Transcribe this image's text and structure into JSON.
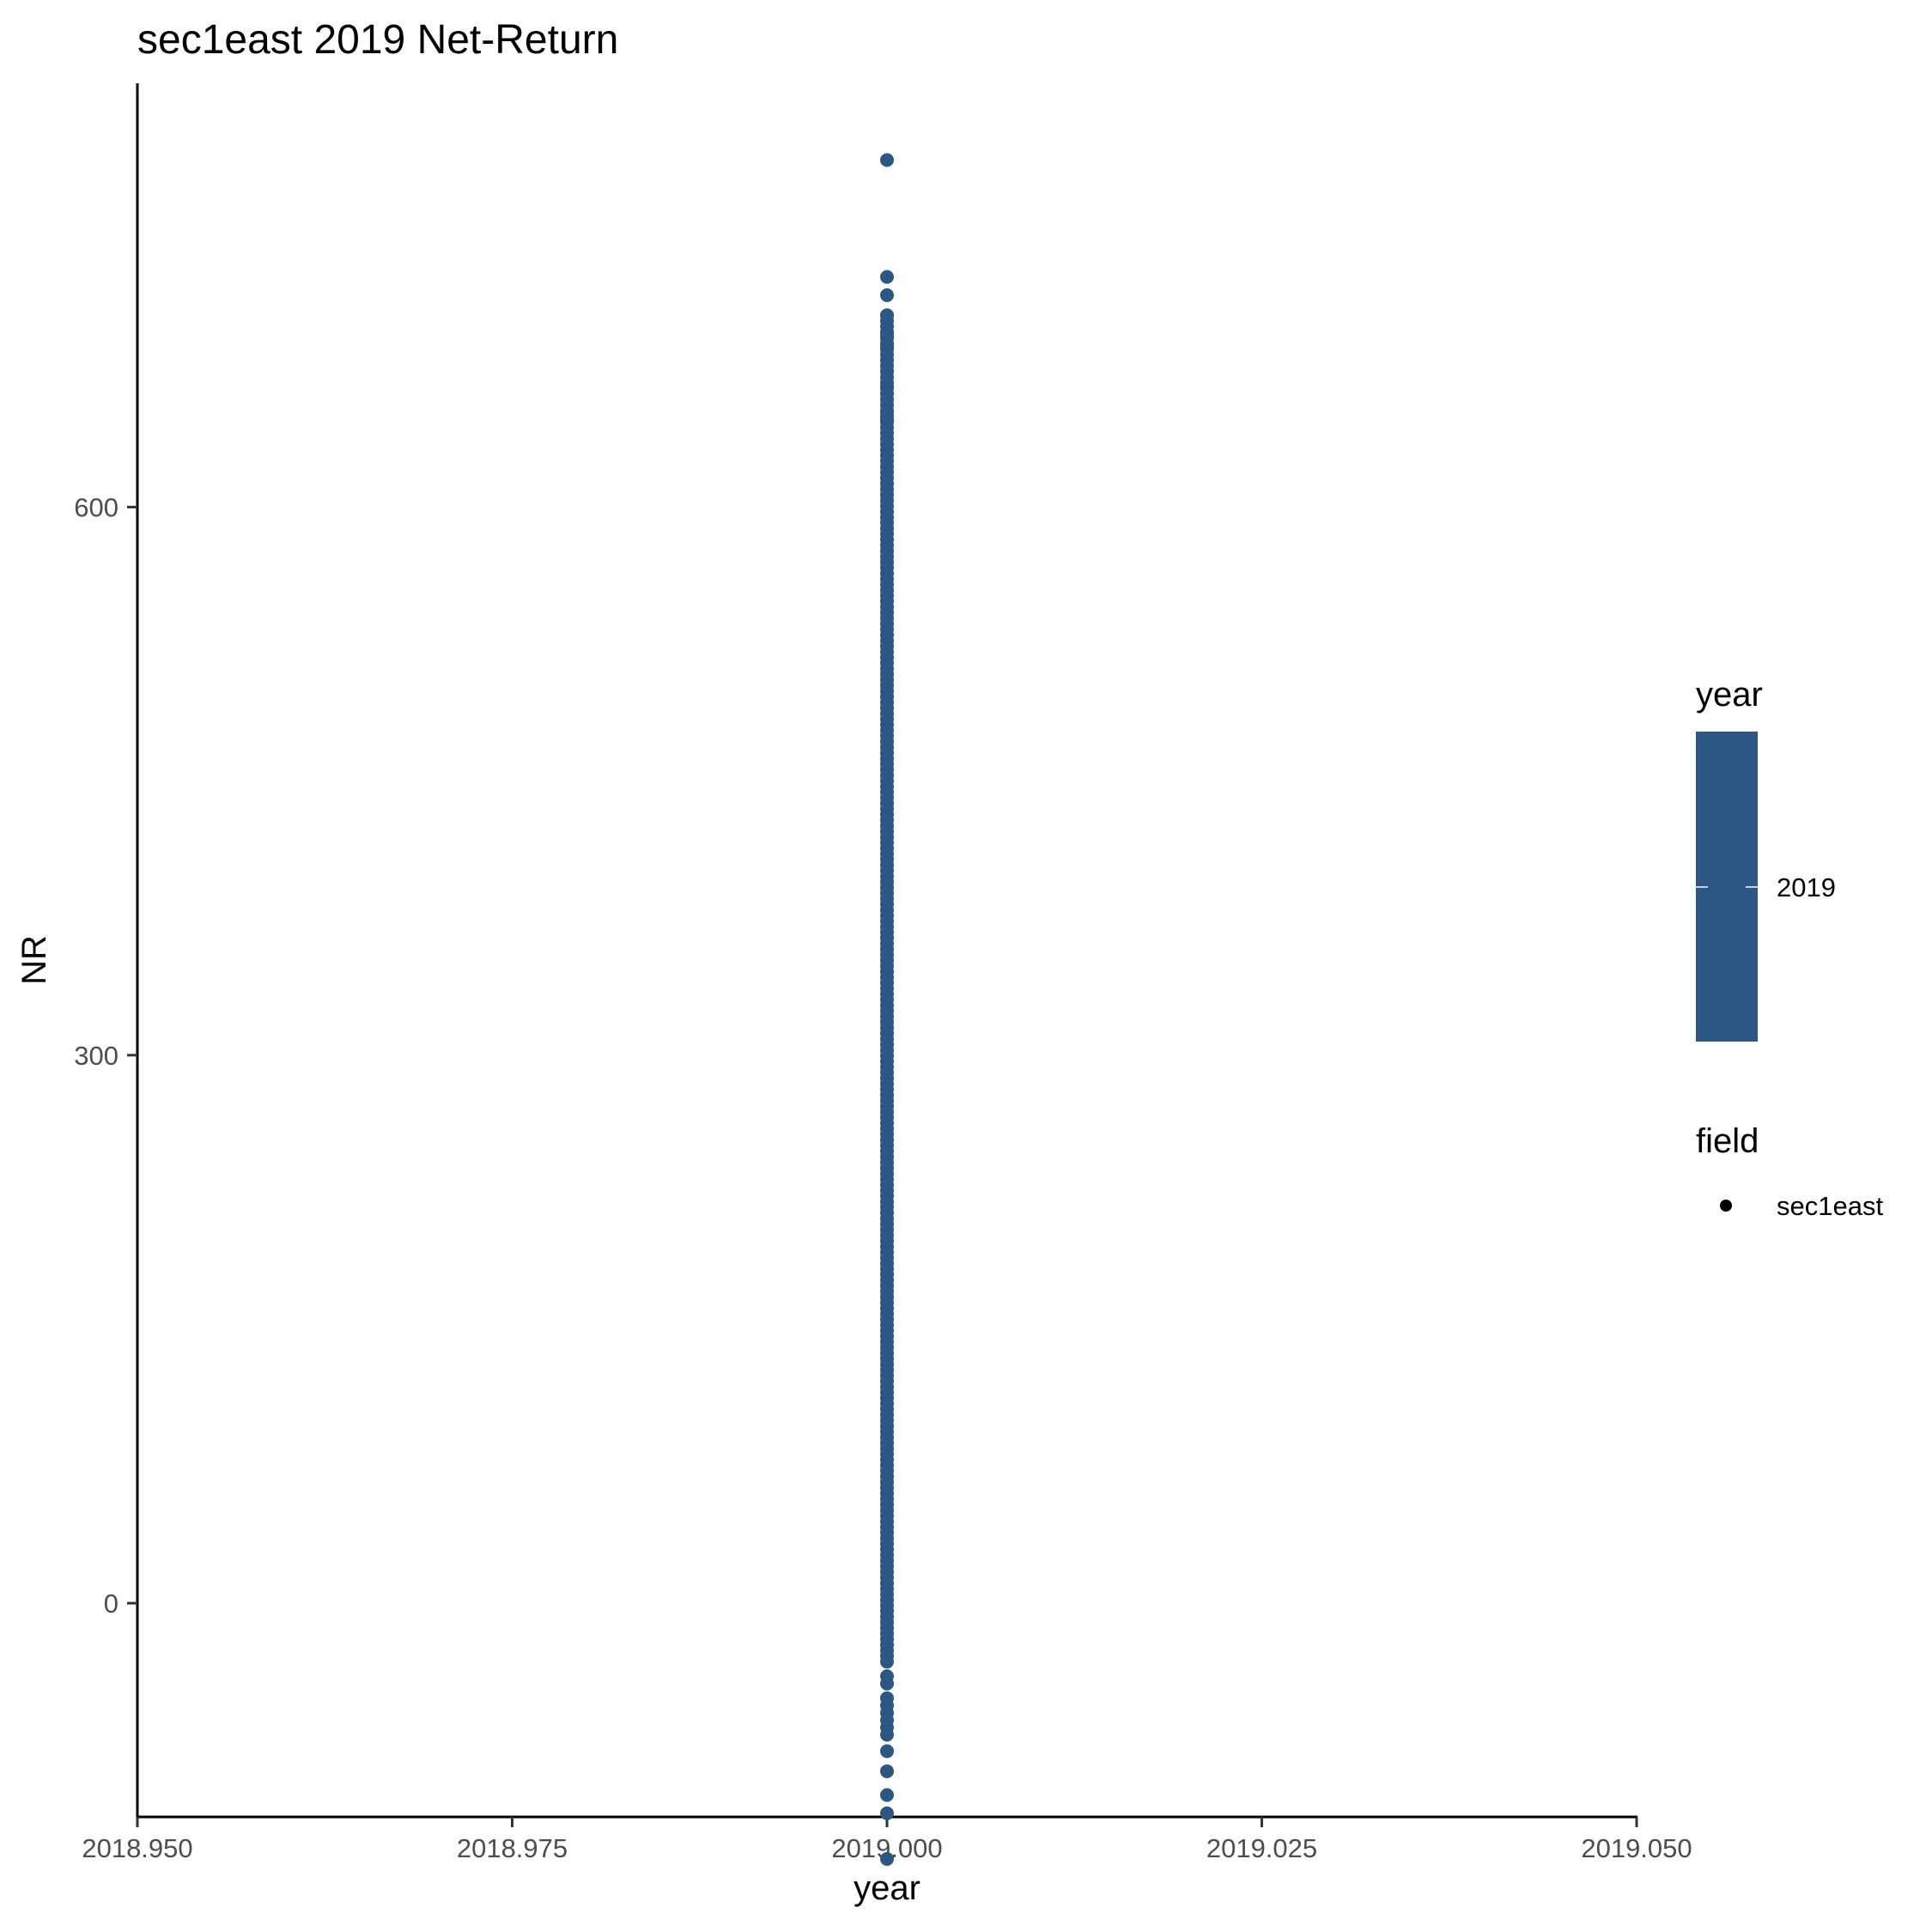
{
  "chart_data": {
    "type": "scatter",
    "title": "sec1east 2019 Net-Return",
    "xlabel": "year",
    "ylabel": "NR",
    "xlim": [
      2018.95,
      2019.05
    ],
    "ylim": [
      -117,
      832
    ],
    "x_ticks": [
      2018.95,
      2018.975,
      2019.0,
      2019.025,
      2019.05
    ],
    "x_tick_labels": [
      "2018.950",
      "2018.975",
      "2019.000",
      "2019.025",
      "2019.050"
    ],
    "y_ticks": [
      0,
      300,
      600
    ],
    "y_tick_labels": [
      "0",
      "300",
      "600"
    ],
    "grid": false,
    "point_color": "#2a5783",
    "series": [
      {
        "field": "sec1east",
        "x": 2019.0,
        "dense_range": [
          -32,
          705
        ],
        "outliers": [
          790,
          726,
          716,
          705,
          695,
          693,
          688,
          666,
          662,
          652,
          648,
          -40,
          -44,
          -52,
          -56,
          -60,
          -64,
          -68,
          -72,
          -81,
          -92,
          -105,
          -115,
          -140
        ]
      }
    ],
    "legends": [
      {
        "title": "year",
        "type": "colorbar",
        "color": "#2a5783",
        "labels": [
          "2019"
        ]
      },
      {
        "title": "field",
        "type": "shape",
        "color": "#000000",
        "labels": [
          "sec1east"
        ]
      }
    ]
  }
}
